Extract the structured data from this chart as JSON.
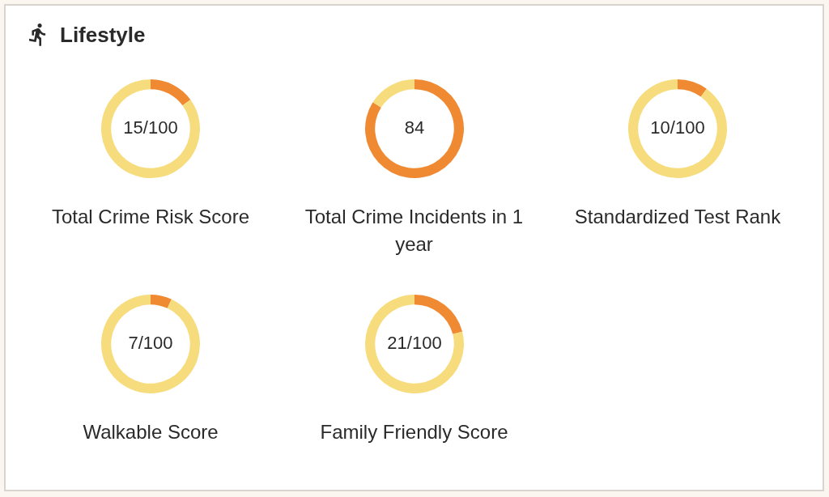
{
  "chart_data": [
    {
      "type": "other",
      "title": "Lifestyle"
    },
    {
      "type": "donut",
      "title": "Total Crime Risk Score",
      "categories": [
        null,
        null
      ],
      "values": [
        15,
        85
      ],
      "colors": [
        "#f08a32",
        "#f6dc7c"
      ],
      "annotations": [
        "15/100"
      ]
    },
    {
      "type": "donut",
      "title": "Total Crime Incidents in 1 year",
      "categories": [
        null,
        null
      ],
      "values": [
        84,
        16
      ],
      "colors": [
        "#f08a32",
        "#f6dc7c"
      ],
      "annotations": [
        "84"
      ]
    },
    {
      "type": "donut",
      "title": "Standardized Test Rank",
      "categories": [
        null,
        null
      ],
      "values": [
        10,
        90
      ],
      "colors": [
        "#f08a32",
        "#f6dc7c"
      ],
      "annotations": [
        "10/100"
      ]
    },
    {
      "type": "donut",
      "title": "Walkable Score",
      "categories": [
        null,
        null
      ],
      "values": [
        7,
        93
      ],
      "colors": [
        "#f08a32",
        "#f6dc7c"
      ],
      "annotations": [
        "7/100"
      ]
    },
    {
      "type": "donut",
      "title": "Family Friendly Score",
      "categories": [
        null,
        null
      ],
      "values": [
        21,
        79
      ],
      "colors": [
        "#f08a32",
        "#f6dc7c"
      ],
      "annotations": [
        "21/100"
      ]
    }
  ]
}
